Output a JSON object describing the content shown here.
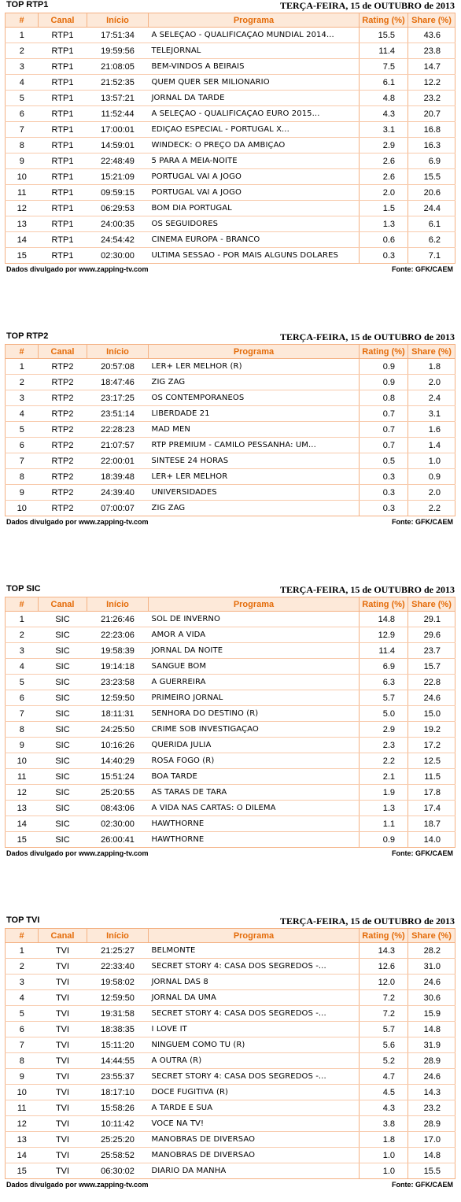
{
  "columns": {
    "num": "#",
    "channel": "Canal",
    "start": "Início",
    "program": "Programa",
    "rating": "Rating (%)",
    "share": "Share (%)"
  },
  "date": "TERÇA-FEIRA, 15 de OUTUBRO de 2013",
  "footer": {
    "source": "Dados divulgado por www.zapping-tv.com",
    "fonte": "Fonte: GFK/CAEM"
  },
  "sections": [
    {
      "title": "TOP RTP1",
      "rows": [
        [
          "1",
          "RTP1",
          "17:51:34",
          "A SELEÇAO - QUALIFICAÇAO MUNDIAL 2014...",
          "15.5",
          "43.6"
        ],
        [
          "2",
          "RTP1",
          "19:59:56",
          "TELEJORNAL",
          "11.4",
          "23.8"
        ],
        [
          "3",
          "RTP1",
          "21:08:05",
          "BEM-VINDOS A BEIRAIS",
          "7.5",
          "14.7"
        ],
        [
          "4",
          "RTP1",
          "21:52:35",
          "QUEM QUER SER MILIONARIO",
          "6.1",
          "12.2"
        ],
        [
          "5",
          "RTP1",
          "13:57:21",
          "JORNAL DA TARDE",
          "4.8",
          "23.2"
        ],
        [
          "6",
          "RTP1",
          "11:52:44",
          "A SELEÇAO - QUALIFICAÇAO EURO 2015...",
          "4.3",
          "20.7"
        ],
        [
          "7",
          "RTP1",
          "17:00:01",
          "EDIÇAO ESPECIAL - PORTUGAL X...",
          "3.1",
          "16.8"
        ],
        [
          "8",
          "RTP1",
          "14:59:01",
          "WINDECK: O PREÇO DA AMBIÇAO",
          "2.9",
          "16.3"
        ],
        [
          "9",
          "RTP1",
          "22:48:49",
          "5 PARA A MEIA-NOITE",
          "2.6",
          "6.9"
        ],
        [
          "10",
          "RTP1",
          "15:21:09",
          "PORTUGAL VAI A JOGO",
          "2.6",
          "15.5"
        ],
        [
          "11",
          "RTP1",
          "09:59:15",
          "PORTUGAL VAI A JOGO",
          "2.0",
          "20.6"
        ],
        [
          "12",
          "RTP1",
          "06:29:53",
          "BOM DIA PORTUGAL",
          "1.5",
          "24.4"
        ],
        [
          "13",
          "RTP1",
          "24:00:35",
          "OS SEGUIDORES",
          "1.3",
          "6.1"
        ],
        [
          "14",
          "RTP1",
          "24:54:42",
          "CINEMA EUROPA - BRANCO",
          "0.6",
          "6.2"
        ],
        [
          "15",
          "RTP1",
          "02:30:00",
          "ULTIMA SESSAO - POR MAIS ALGUNS DOLARES",
          "0.3",
          "7.1"
        ]
      ]
    },
    {
      "title": "TOP RTP2",
      "rows": [
        [
          "1",
          "RTP2",
          "20:57:08",
          "LER+ LER MELHOR (R)",
          "0.9",
          "1.8"
        ],
        [
          "2",
          "RTP2",
          "18:47:46",
          "ZIG ZAG",
          "0.9",
          "2.0"
        ],
        [
          "3",
          "RTP2",
          "23:17:25",
          "OS CONTEMPORANEOS",
          "0.8",
          "2.4"
        ],
        [
          "4",
          "RTP2",
          "23:51:14",
          "LIBERDADE 21",
          "0.7",
          "3.1"
        ],
        [
          "5",
          "RTP2",
          "22:28:23",
          "MAD MEN",
          "0.7",
          "1.6"
        ],
        [
          "6",
          "RTP2",
          "21:07:57",
          "RTP PREMIUM - CAMILO PESSANHA: UM...",
          "0.7",
          "1.4"
        ],
        [
          "7",
          "RTP2",
          "22:00:01",
          "SINTESE 24 HORAS",
          "0.5",
          "1.0"
        ],
        [
          "8",
          "RTP2",
          "18:39:48",
          "LER+ LER MELHOR",
          "0.3",
          "0.9"
        ],
        [
          "9",
          "RTP2",
          "24:39:40",
          "UNIVERSIDADES",
          "0.3",
          "2.0"
        ],
        [
          "10",
          "RTP2",
          "07:00:07",
          "ZIG ZAG",
          "0.3",
          "2.2"
        ]
      ]
    },
    {
      "title": "TOP SIC",
      "rows": [
        [
          "1",
          "SIC",
          "21:26:46",
          "SOL DE INVERNO",
          "14.8",
          "29.1"
        ],
        [
          "2",
          "SIC",
          "22:23:06",
          "AMOR A VIDA",
          "12.9",
          "29.6"
        ],
        [
          "3",
          "SIC",
          "19:58:39",
          "JORNAL DA NOITE",
          "11.4",
          "23.7"
        ],
        [
          "4",
          "SIC",
          "19:14:18",
          "SANGUE BOM",
          "6.9",
          "15.7"
        ],
        [
          "5",
          "SIC",
          "23:23:58",
          "A GUERREIRA",
          "6.3",
          "22.8"
        ],
        [
          "6",
          "SIC",
          "12:59:50",
          "PRIMEIRO JORNAL",
          "5.7",
          "24.6"
        ],
        [
          "7",
          "SIC",
          "18:11:31",
          "SENHORA DO DESTINO (R)",
          "5.0",
          "15.0"
        ],
        [
          "8",
          "SIC",
          "24:25:50",
          "CRIME SOB INVESTIGAÇAO",
          "2.9",
          "19.2"
        ],
        [
          "9",
          "SIC",
          "10:16:26",
          "QUERIDA JULIA",
          "2.3",
          "17.2"
        ],
        [
          "10",
          "SIC",
          "14:40:29",
          "ROSA FOGO (R)",
          "2.2",
          "12.5"
        ],
        [
          "11",
          "SIC",
          "15:51:24",
          "BOA TARDE",
          "2.1",
          "11.5"
        ],
        [
          "12",
          "SIC",
          "25:20:55",
          "AS TARAS DE TARA",
          "1.9",
          "17.8"
        ],
        [
          "13",
          "SIC",
          "08:43:06",
          "A VIDA NAS CARTAS: O DILEMA",
          "1.3",
          "17.4"
        ],
        [
          "14",
          "SIC",
          "02:30:00",
          "HAWTHORNE",
          "1.1",
          "18.7"
        ],
        [
          "15",
          "SIC",
          "26:00:41",
          "HAWTHORNE",
          "0.9",
          "14.0"
        ]
      ]
    },
    {
      "title": "TOP TVI",
      "rows": [
        [
          "1",
          "TVI",
          "21:25:27",
          "BELMONTE",
          "14.3",
          "28.2"
        ],
        [
          "2",
          "TVI",
          "22:33:40",
          "SECRET STORY 4: CASA DOS SEGREDOS -...",
          "12.6",
          "31.0"
        ],
        [
          "3",
          "TVI",
          "19:58:02",
          "JORNAL DAS 8",
          "12.0",
          "24.6"
        ],
        [
          "4",
          "TVI",
          "12:59:50",
          "JORNAL DA UMA",
          "7.2",
          "30.6"
        ],
        [
          "5",
          "TVI",
          "19:31:58",
          "SECRET STORY 4: CASA DOS SEGREDOS -...",
          "7.2",
          "15.9"
        ],
        [
          "6",
          "TVI",
          "18:38:35",
          "I LOVE IT",
          "5.7",
          "14.8"
        ],
        [
          "7",
          "TVI",
          "15:11:20",
          "NINGUEM COMO TU (R)",
          "5.6",
          "31.9"
        ],
        [
          "8",
          "TVI",
          "14:44:55",
          "A OUTRA (R)",
          "5.2",
          "28.9"
        ],
        [
          "9",
          "TVI",
          "23:55:37",
          "SECRET STORY 4: CASA DOS SEGREDOS -...",
          "4.7",
          "24.6"
        ],
        [
          "10",
          "TVI",
          "18:17:10",
          "DOCE FUGITIVA (R)",
          "4.5",
          "14.3"
        ],
        [
          "11",
          "TVI",
          "15:58:26",
          "A TARDE E SUA",
          "4.3",
          "23.2"
        ],
        [
          "12",
          "TVI",
          "10:11:42",
          "VOCE NA TV!",
          "3.8",
          "28.9"
        ],
        [
          "13",
          "TVI",
          "25:25:20",
          "MANOBRAS DE DIVERSAO",
          "1.8",
          "17.0"
        ],
        [
          "14",
          "TVI",
          "25:58:52",
          "MANOBRAS DE DIVERSAO",
          "1.0",
          "14.8"
        ],
        [
          "15",
          "TVI",
          "06:30:02",
          "DIARIO DA MANHA",
          "1.0",
          "15.5"
        ]
      ]
    }
  ]
}
